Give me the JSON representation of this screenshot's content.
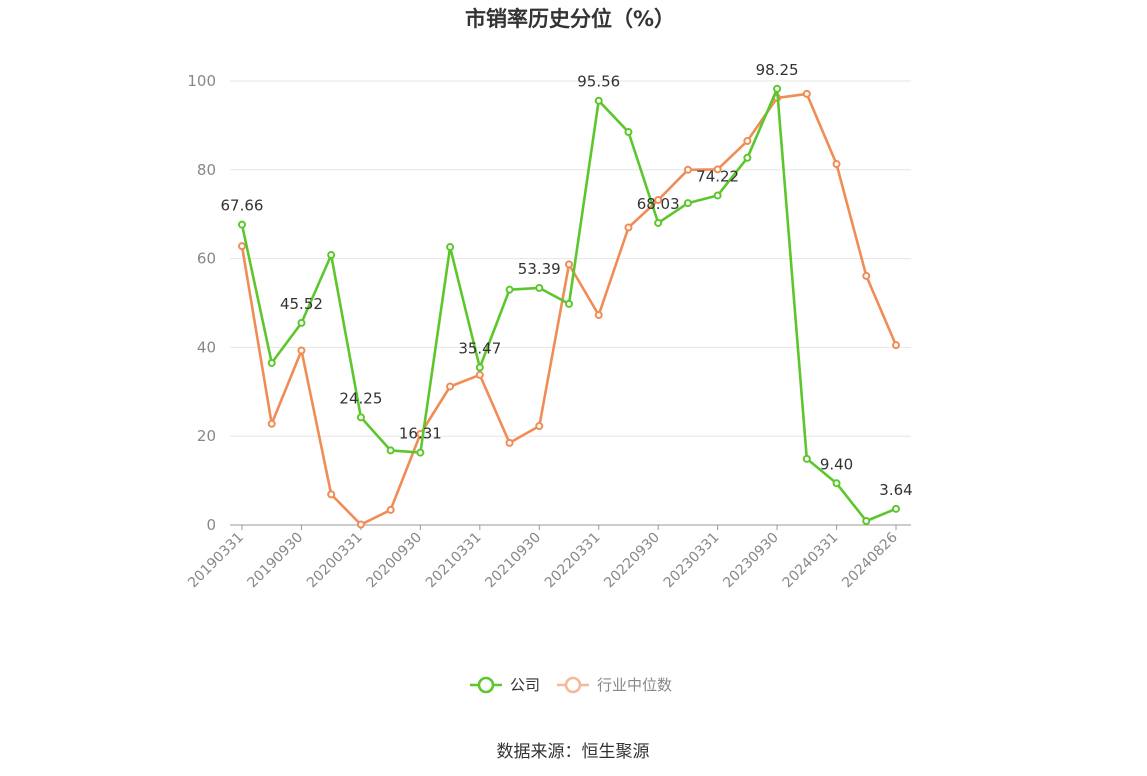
{
  "chart_data": {
    "type": "line",
    "title": "市销率历史分位（%）",
    "xlabel": "",
    "ylabel": "",
    "ylim": [
      0,
      100
    ],
    "yticks": [
      0,
      20,
      40,
      60,
      80,
      100
    ],
    "x": [
      "20190331",
      "20190630",
      "20190930",
      "20191231",
      "20200331",
      "20200630",
      "20200930",
      "20201231",
      "20210331",
      "20210630",
      "20210930",
      "20211231",
      "20220331",
      "20220630",
      "20220930",
      "20221231",
      "20230331",
      "20230630",
      "20230930",
      "20231231",
      "20240331",
      "20240630",
      "20240826"
    ],
    "x_tick_labels": [
      "20190331",
      "20190930",
      "20200331",
      "20200930",
      "20210331",
      "20210930",
      "20220331",
      "20220930",
      "20230331",
      "20230930",
      "20240331",
      "20240826"
    ],
    "grid": true,
    "legend_position": "bottom",
    "series": [
      {
        "name": "公司",
        "color": "#5cc72c",
        "values": [
          67.66,
          36.5,
          45.52,
          60.8,
          24.25,
          16.8,
          16.31,
          62.6,
          35.47,
          53.0,
          53.39,
          49.8,
          95.56,
          88.5,
          68.03,
          72.5,
          74.22,
          82.7,
          98.25,
          14.9,
          9.4,
          0.9,
          3.64
        ],
        "labels": {
          "0": "67.66",
          "2": "45.52",
          "4": "24.25",
          "6": "16.31",
          "8": "35.47",
          "10": "53.39",
          "12": "95.56",
          "14": "68.03",
          "16": "74.22",
          "18": "98.25",
          "20": "9.40",
          "22": "3.64"
        }
      },
      {
        "name": "行业中位数",
        "color": "#f08c55",
        "values": [
          62.8,
          22.8,
          39.3,
          6.9,
          0.1,
          3.4,
          20.5,
          31.2,
          33.8,
          18.5,
          22.3,
          58.7,
          47.3,
          67.0,
          73.2,
          80.0,
          80.1,
          86.5,
          96.2,
          97.1,
          81.3,
          56.1,
          40.5
        ]
      }
    ]
  },
  "source_text": "数据来源：恒生聚源"
}
